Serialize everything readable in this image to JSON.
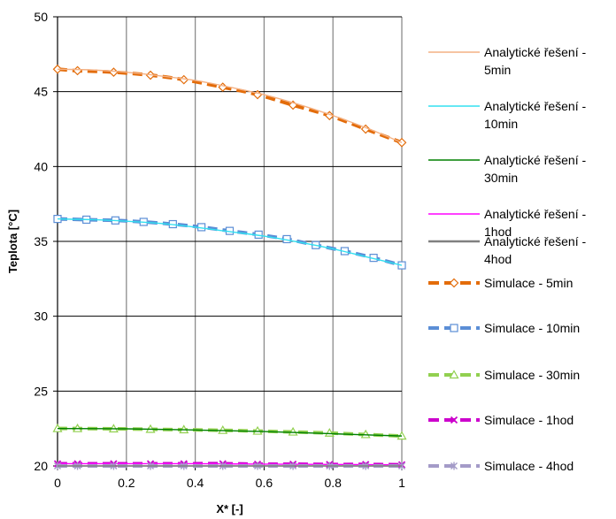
{
  "chart_data": {
    "type": "line",
    "title": "",
    "xlabel": "X* [-]",
    "ylabel": "Teplota [°C]",
    "xlim": [
      0,
      1
    ],
    "ylim": [
      20,
      50
    ],
    "xticks": [
      0,
      0.2,
      0.4,
      0.6,
      0.8,
      1
    ],
    "yticks": [
      20,
      25,
      30,
      35,
      40,
      45,
      50
    ],
    "xtick_labels": [
      "0",
      "0.2",
      "0.4",
      "0.6",
      "0.8",
      "1"
    ],
    "ytick_labels": [
      "20",
      "25",
      "30",
      "35",
      "40",
      "45",
      "50"
    ],
    "grid": true,
    "legend_position": "right",
    "series": [
      {
        "name": "Analytické řešení - 5min",
        "kind": "analytic",
        "color": "#F4B183",
        "x": [
          0,
          0.1,
          0.2,
          0.3,
          0.4,
          0.5,
          0.6,
          0.7,
          0.8,
          0.9,
          1
        ],
        "y": [
          46.5,
          46.45,
          46.3,
          46.05,
          45.75,
          45.3,
          44.8,
          44.15,
          43.4,
          42.55,
          41.6
        ]
      },
      {
        "name": "Analytické řešení - 10min",
        "kind": "analytic",
        "color": "#33E0F0",
        "x": [
          0,
          0.1,
          0.2,
          0.3,
          0.4,
          0.5,
          0.6,
          0.7,
          0.8,
          0.9,
          1
        ],
        "y": [
          36.5,
          36.45,
          36.35,
          36.2,
          35.95,
          35.65,
          35.35,
          34.95,
          34.5,
          33.95,
          33.4
        ]
      },
      {
        "name": "Analytické řešení - 30min",
        "kind": "analytic",
        "color": "#008000",
        "x": [
          0,
          0.2,
          0.4,
          0.6,
          0.8,
          1
        ],
        "y": [
          22.5,
          22.48,
          22.4,
          22.3,
          22.15,
          22.0
        ]
      },
      {
        "name": "Analytické řešení - 1hod",
        "kind": "analytic",
        "color": "#FF00FF",
        "x": [
          0,
          0.2,
          0.4,
          0.6,
          0.8,
          1
        ],
        "y": [
          20.15,
          20.15,
          20.15,
          20.12,
          20.1,
          20.08
        ]
      },
      {
        "name": "Analytické řešení - 4hod",
        "kind": "analytic",
        "color": "#808080",
        "x": [
          0,
          0.2,
          0.4,
          0.6,
          0.8,
          1
        ],
        "y": [
          20.0,
          20.0,
          20.0,
          20.0,
          20.0,
          20.0
        ]
      },
      {
        "name": "Simulace - 5min",
        "kind": "simulation",
        "marker": "diamond",
        "color": "#E36C0A",
        "x": [
          0,
          0.058,
          0.163,
          0.27,
          0.367,
          0.48,
          0.581,
          0.684,
          0.79,
          0.895,
          1
        ],
        "y": [
          46.5,
          46.4,
          46.3,
          46.1,
          45.8,
          45.3,
          44.8,
          44.1,
          43.4,
          42.5,
          41.6
        ]
      },
      {
        "name": "Simulace - 10min",
        "kind": "simulation",
        "marker": "square",
        "color": "#5B8ED6",
        "x": [
          0,
          0.084,
          0.168,
          0.25,
          0.335,
          0.418,
          0.5,
          0.584,
          0.666,
          0.75,
          0.834,
          0.918,
          1
        ],
        "y": [
          36.5,
          36.45,
          36.4,
          36.3,
          36.15,
          35.95,
          35.7,
          35.45,
          35.15,
          34.75,
          34.35,
          33.9,
          33.4
        ]
      },
      {
        "name": "Simulace - 30min",
        "kind": "simulation",
        "marker": "triangle",
        "color": "#92D050",
        "x": [
          0,
          0.058,
          0.163,
          0.27,
          0.367,
          0.48,
          0.581,
          0.684,
          0.79,
          0.895,
          1
        ],
        "y": [
          22.5,
          22.5,
          22.48,
          22.45,
          22.42,
          22.38,
          22.33,
          22.27,
          22.2,
          22.1,
          22.0
        ]
      },
      {
        "name": "Simulace - 1hod",
        "kind": "simulation",
        "marker": "x",
        "color": "#CC00CC",
        "x": [
          0,
          0.058,
          0.163,
          0.27,
          0.367,
          0.48,
          0.581,
          0.684,
          0.79,
          0.895,
          1
        ],
        "y": [
          20.15,
          20.15,
          20.15,
          20.15,
          20.15,
          20.15,
          20.12,
          20.12,
          20.1,
          20.1,
          20.08
        ]
      },
      {
        "name": "Simulace - 4hod",
        "kind": "simulation",
        "marker": "star",
        "color": "#A49BC8",
        "x": [
          0,
          0.058,
          0.163,
          0.27,
          0.367,
          0.48,
          0.581,
          0.684,
          0.79,
          0.895,
          1
        ],
        "y": [
          20.0,
          20.0,
          20.0,
          20.0,
          20.0,
          20.0,
          20.0,
          20.0,
          20.0,
          20.0,
          20.0
        ]
      }
    ]
  }
}
